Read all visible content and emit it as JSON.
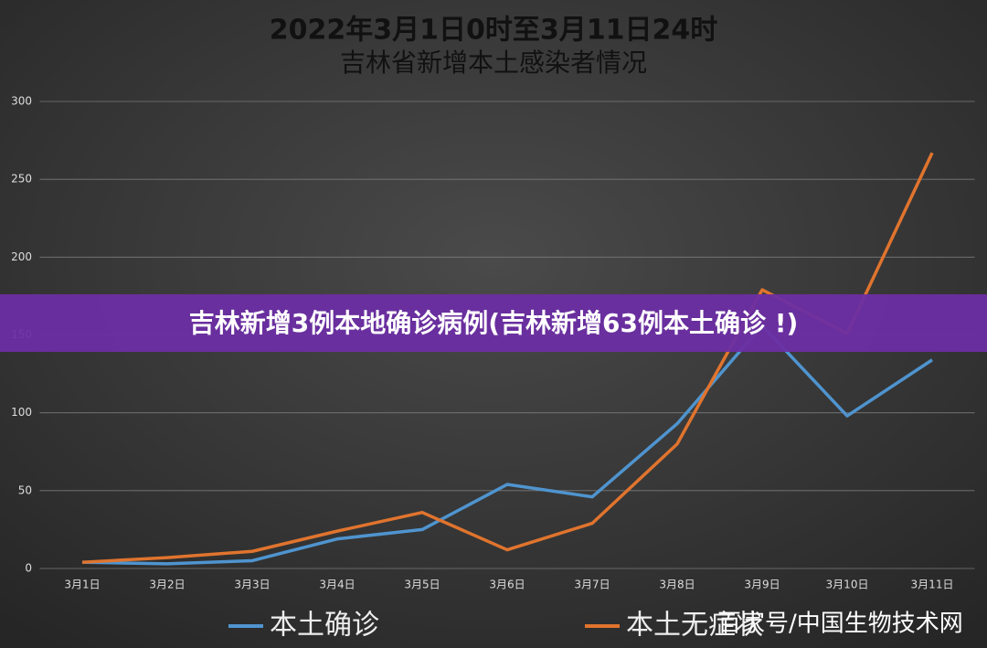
{
  "chart_data": {
    "type": "line",
    "title": "2022年3月1日0时至3月11日24时",
    "subtitle": "吉林省新增本土感染者情况",
    "categories": [
      "3月1日",
      "3月2日",
      "3月3日",
      "3月4日",
      "3月5日",
      "3月6日",
      "3月7日",
      "3月8日",
      "3月9日",
      "3月10日",
      "3月11日"
    ],
    "series": [
      {
        "name": "本土确诊",
        "color": "#4f94cf",
        "values": [
          4,
          3,
          5,
          19,
          25,
          54,
          46,
          93,
          156,
          98,
          134
        ]
      },
      {
        "name": "本土无症状",
        "color": "#e0742e",
        "values": [
          4,
          7,
          11,
          24,
          36,
          12,
          29,
          80,
          179,
          151,
          267
        ]
      }
    ],
    "ylim": [
      0,
      300
    ],
    "yticks": [
      0,
      50,
      100,
      150,
      200,
      250,
      300
    ],
    "grid": true
  },
  "banner": "吉林新增3例本地确诊病例(吉林新增63例本土确诊 !)",
  "watermark": "百家号/中国生物技术网"
}
